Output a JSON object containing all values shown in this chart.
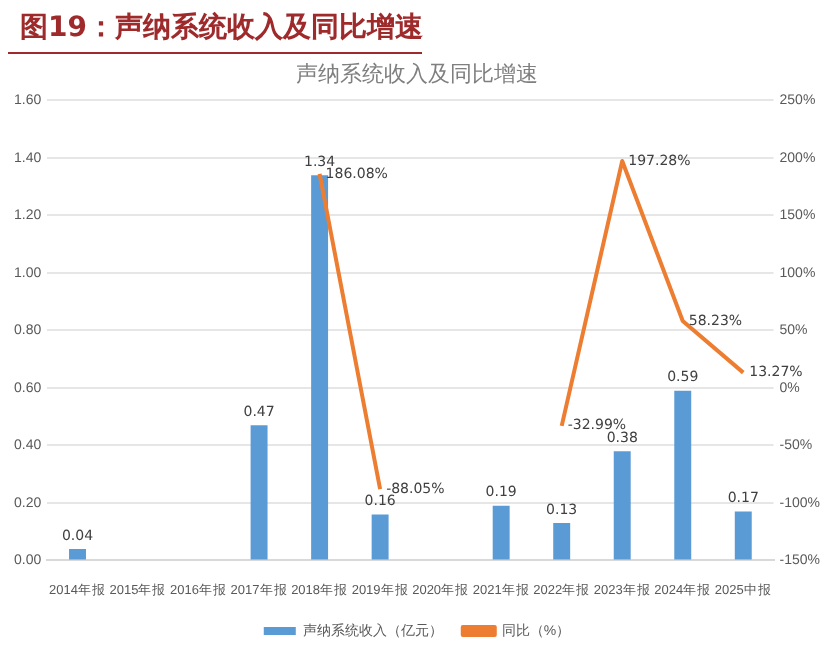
{
  "chart_data": {
    "type": "bar",
    "title": "图19：声纳系统收入及同比增速",
    "subtitle": "声纳系统收入及同比增速",
    "categories": [
      "2014年报",
      "2015年报",
      "2016年报",
      "2017年报",
      "2018年报",
      "2019年报",
      "2020年报",
      "2021年报",
      "2022年报",
      "2023年报",
      "2024年报",
      "2025中报"
    ],
    "series": [
      {
        "name": "声纳系统收入（亿元）",
        "color": "#5b9bd5",
        "values": [
          0.04,
          null,
          null,
          0.47,
          1.34,
          0.16,
          null,
          0.19,
          0.13,
          0.38,
          0.59,
          0.17
        ],
        "value_labels": [
          "0.04",
          null,
          null,
          "0.47",
          "1.34",
          "0.16",
          null,
          "0.19",
          "0.13",
          "0.38",
          "0.59",
          "0.17"
        ]
      },
      {
        "name": "同比（%）",
        "type": "line",
        "axis": "y2",
        "color": "#ed7d31",
        "marker": "none",
        "line_style": "solid",
        "values": [
          null,
          null,
          null,
          null,
          186.08,
          -88.05,
          null,
          null,
          -32.99,
          197.28,
          58.23,
          13.27
        ],
        "value_labels": [
          null,
          null,
          null,
          null,
          "186.08%",
          "-88.05%",
          null,
          null,
          "-32.99%",
          "197.28%",
          "58.23%",
          "13.27%"
        ]
      }
    ],
    "ylim": [
      0,
      1.6
    ],
    "yticks": [
      {
        "value": 0,
        "label": "0.00"
      },
      {
        "value": 0.2,
        "label": "0.20"
      },
      {
        "value": 0.4,
        "label": "0.40"
      },
      {
        "value": 0.6,
        "label": "0.60"
      },
      {
        "value": 0.8,
        "label": "0.80"
      },
      {
        "value": 1,
        "label": "1.00"
      },
      {
        "value": 1.2,
        "label": "1.20"
      },
      {
        "value": 1.4,
        "label": "1.40"
      },
      {
        "value": 1.6,
        "label": "1.60"
      }
    ],
    "y2lim": [
      -150,
      250
    ],
    "y2ticks": [
      {
        "value": -150,
        "label": "-150%"
      },
      {
        "value": -100,
        "label": "-100%"
      },
      {
        "value": -50,
        "label": "-50%"
      },
      {
        "value": 0,
        "label": "0%"
      },
      {
        "value": 50,
        "label": "50%"
      },
      {
        "value": 100,
        "label": "100%"
      },
      {
        "value": 150,
        "label": "150%"
      },
      {
        "value": 200,
        "label": "200%"
      },
      {
        "value": 250,
        "label": "250%"
      }
    ],
    "grid": "y",
    "legend": "bottom"
  }
}
